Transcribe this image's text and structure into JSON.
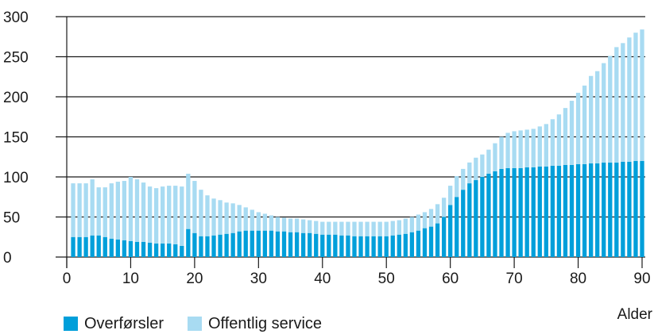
{
  "chart_data": {
    "type": "bar",
    "stacked": true,
    "xlabel": "Alder",
    "ylabel": "",
    "xlim": [
      0,
      90
    ],
    "ylim": [
      0,
      300
    ],
    "xticks": [
      0,
      10,
      20,
      30,
      40,
      50,
      60,
      70,
      80,
      90
    ],
    "yticks": [
      0,
      50,
      100,
      150,
      200,
      250,
      300
    ],
    "grid": "horizontal",
    "legend_position": "bottom-left",
    "x": [
      1,
      2,
      3,
      4,
      5,
      6,
      7,
      8,
      9,
      10,
      11,
      12,
      13,
      14,
      15,
      16,
      17,
      18,
      19,
      20,
      21,
      22,
      23,
      24,
      25,
      26,
      27,
      28,
      29,
      30,
      31,
      32,
      33,
      34,
      35,
      36,
      37,
      38,
      39,
      40,
      41,
      42,
      43,
      44,
      45,
      46,
      47,
      48,
      49,
      50,
      51,
      52,
      53,
      54,
      55,
      56,
      57,
      58,
      59,
      60,
      61,
      62,
      63,
      64,
      65,
      66,
      67,
      68,
      69,
      70,
      71,
      72,
      73,
      74,
      75,
      76,
      77,
      78,
      79,
      80,
      81,
      82,
      83,
      84,
      85,
      86,
      87,
      88,
      89,
      90
    ],
    "series": [
      {
        "name": "Overførsler",
        "color": "#009fda",
        "values": [
          25,
          25,
          25,
          27,
          27,
          25,
          23,
          22,
          21,
          20,
          19,
          19,
          18,
          17,
          17,
          17,
          16,
          14,
          35,
          30,
          26,
          26,
          27,
          28,
          29,
          30,
          32,
          33,
          33,
          33,
          33,
          33,
          32,
          32,
          31,
          31,
          30,
          30,
          29,
          28,
          28,
          28,
          27,
          27,
          26,
          26,
          26,
          26,
          26,
          26,
          27,
          28,
          29,
          31,
          33,
          36,
          38,
          42,
          50,
          65,
          75,
          84,
          92,
          96,
          100,
          104,
          107,
          110,
          111,
          111,
          111,
          112,
          112,
          113,
          113,
          114,
          114,
          115,
          115,
          116,
          116,
          117,
          117,
          118,
          118,
          118,
          119,
          119,
          120,
          120
        ]
      },
      {
        "name": "Offentlig service",
        "color": "#a8dbf2",
        "values": [
          67,
          67,
          67,
          70,
          60,
          62,
          69,
          72,
          74,
          80,
          78,
          74,
          70,
          69,
          71,
          72,
          73,
          74,
          69,
          65,
          58,
          51,
          46,
          43,
          39,
          37,
          33,
          29,
          26,
          23,
          21,
          19,
          18,
          17,
          17,
          17,
          17,
          16,
          16,
          16,
          16,
          16,
          17,
          17,
          18,
          18,
          18,
          18,
          18,
          18,
          18,
          18,
          19,
          19,
          20,
          20,
          22,
          24,
          24,
          24,
          26,
          26,
          26,
          28,
          28,
          30,
          35,
          40,
          44,
          46,
          47,
          47,
          48,
          50,
          53,
          58,
          64,
          71,
          80,
          89,
          98,
          109,
          115,
          124,
          133,
          144,
          148,
          155,
          160,
          164
        ]
      }
    ]
  }
}
